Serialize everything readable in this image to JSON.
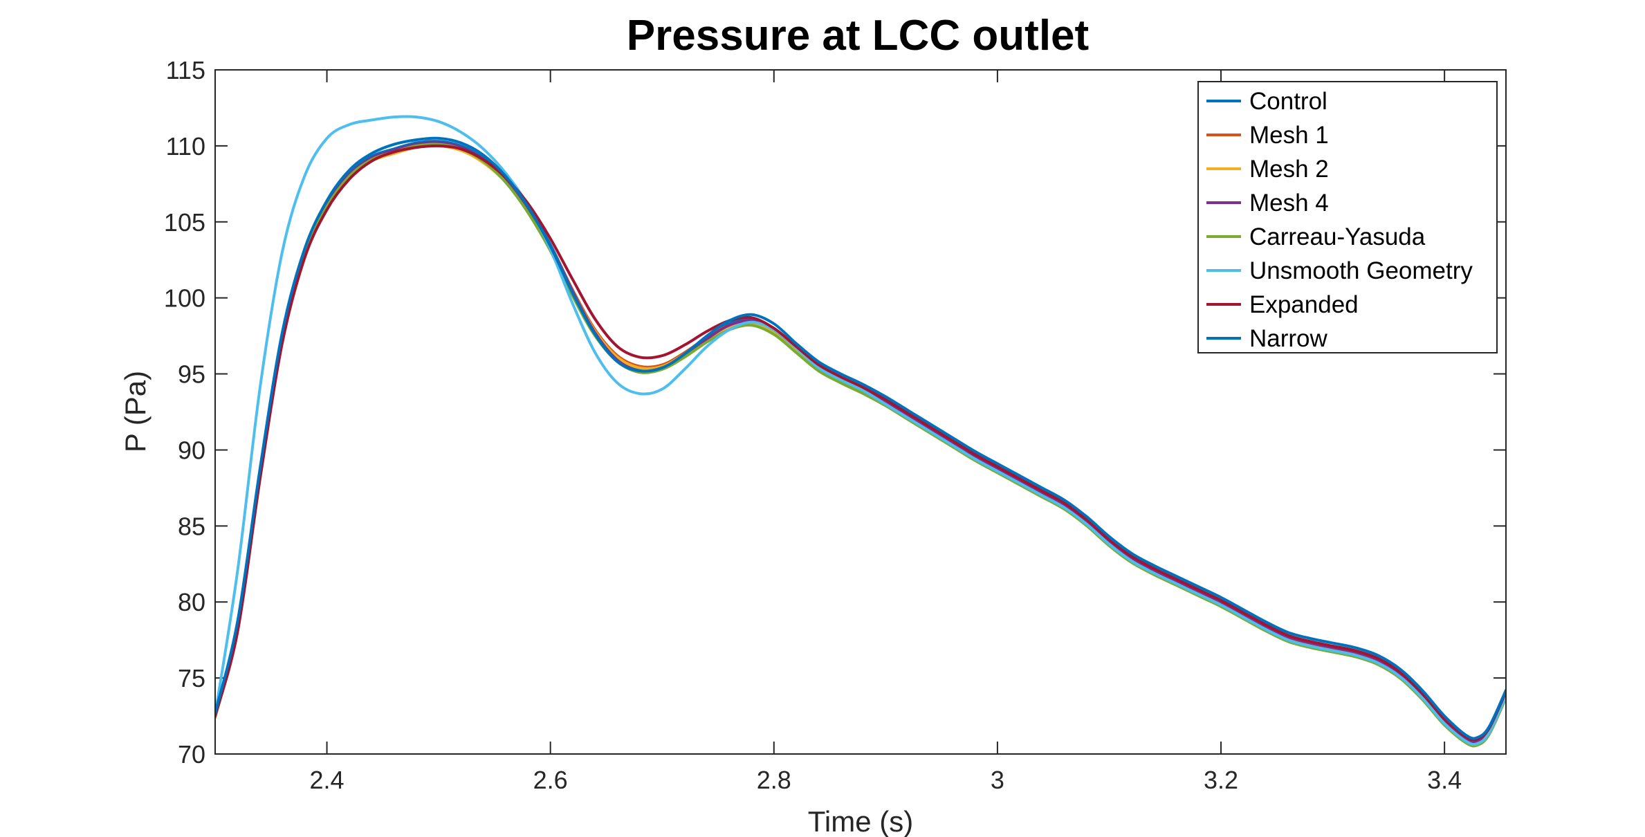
{
  "chart_data": {
    "type": "line",
    "title": "Pressure at LCC outlet",
    "xlabel": "Time (s)",
    "ylabel": "P (Pa)",
    "xlim": [
      2.3,
      3.455
    ],
    "ylim": [
      70,
      115
    ],
    "xticks": [
      2.4,
      2.6,
      2.8,
      3,
      3.2,
      3.4
    ],
    "xtick_labels": [
      "2.4",
      "2.6",
      "2.8",
      "3",
      "3.2",
      "3.4"
    ],
    "yticks": [
      70,
      75,
      80,
      85,
      90,
      95,
      100,
      105,
      110,
      115
    ],
    "ytick_labels": [
      "70",
      "75",
      "80",
      "85",
      "90",
      "95",
      "100",
      "105",
      "110",
      "115"
    ],
    "grid": false,
    "box": true,
    "legend_position": "top-right",
    "series": [
      {
        "name": "Control",
        "color": "#0072BD",
        "x": [
          2.3,
          2.32,
          2.34,
          2.36,
          2.38,
          2.4,
          2.42,
          2.44,
          2.46,
          2.48,
          2.5,
          2.52,
          2.54,
          2.56,
          2.58,
          2.6,
          2.62,
          2.64,
          2.66,
          2.68,
          2.7,
          2.72,
          2.74,
          2.76,
          2.78,
          2.8,
          2.82,
          2.84,
          2.86,
          2.88,
          2.9,
          2.92,
          2.94,
          2.96,
          2.98,
          3.0,
          3.02,
          3.04,
          3.06,
          3.08,
          3.1,
          3.12,
          3.14,
          3.16,
          3.18,
          3.2,
          3.22,
          3.24,
          3.26,
          3.28,
          3.3,
          3.32,
          3.34,
          3.36,
          3.38,
          3.4,
          3.42,
          3.43,
          3.44,
          3.455
        ],
        "y": [
          72.6,
          78.5,
          88.5,
          97.5,
          103.0,
          106.2,
          108.2,
          109.3,
          109.8,
          110.2,
          110.3,
          110.0,
          109.2,
          107.9,
          106.0,
          103.5,
          100.5,
          97.8,
          96.0,
          95.3,
          95.5,
          96.3,
          97.4,
          98.3,
          98.6,
          98.0,
          96.8,
          95.6,
          94.8,
          94.1,
          93.3,
          92.4,
          91.5,
          90.6,
          89.7,
          88.9,
          88.1,
          87.3,
          86.5,
          85.4,
          84.1,
          83.0,
          82.2,
          81.5,
          80.8,
          80.1,
          79.3,
          78.5,
          77.8,
          77.4,
          77.1,
          76.8,
          76.3,
          75.4,
          74.0,
          72.3,
          71.0,
          70.9,
          71.6,
          74.0
        ]
      },
      {
        "name": "Mesh 1",
        "color": "#D95319",
        "x": [
          2.3,
          2.32,
          2.34,
          2.36,
          2.38,
          2.4,
          2.42,
          2.44,
          2.46,
          2.48,
          2.5,
          2.52,
          2.54,
          2.56,
          2.58,
          2.6,
          2.62,
          2.64,
          2.66,
          2.68,
          2.7,
          2.72,
          2.74,
          2.76,
          2.78,
          2.8,
          2.82,
          2.84,
          2.86,
          2.88,
          2.9,
          2.92,
          2.94,
          2.96,
          2.98,
          3.0,
          3.02,
          3.04,
          3.06,
          3.08,
          3.1,
          3.12,
          3.14,
          3.16,
          3.18,
          3.2,
          3.22,
          3.24,
          3.26,
          3.28,
          3.3,
          3.32,
          3.34,
          3.36,
          3.38,
          3.4,
          3.42,
          3.43,
          3.44,
          3.455
        ],
        "y": [
          72.5,
          78.3,
          88.3,
          97.3,
          102.8,
          106.0,
          108.0,
          109.1,
          109.6,
          110.0,
          110.1,
          109.8,
          109.0,
          107.7,
          105.8,
          103.4,
          100.5,
          97.9,
          96.2,
          95.5,
          95.6,
          96.4,
          97.4,
          98.2,
          98.4,
          97.8,
          96.6,
          95.4,
          94.6,
          93.9,
          93.1,
          92.2,
          91.3,
          90.4,
          89.5,
          88.7,
          87.9,
          87.1,
          86.3,
          85.2,
          83.9,
          82.8,
          82.0,
          81.3,
          80.6,
          79.9,
          79.1,
          78.3,
          77.6,
          77.2,
          76.9,
          76.6,
          76.1,
          75.2,
          73.8,
          72.1,
          70.8,
          70.7,
          71.4,
          73.8
        ]
      },
      {
        "name": "Mesh 2",
        "color": "#EDB120",
        "x": [
          2.3,
          2.32,
          2.34,
          2.36,
          2.38,
          2.4,
          2.42,
          2.44,
          2.46,
          2.48,
          2.5,
          2.52,
          2.54,
          2.56,
          2.58,
          2.6,
          2.62,
          2.64,
          2.66,
          2.68,
          2.7,
          2.72,
          2.74,
          2.76,
          2.78,
          2.8,
          2.82,
          2.84,
          2.86,
          2.88,
          2.9,
          2.92,
          2.94,
          2.96,
          2.98,
          3.0,
          3.02,
          3.04,
          3.06,
          3.08,
          3.1,
          3.12,
          3.14,
          3.16,
          3.18,
          3.2,
          3.22,
          3.24,
          3.26,
          3.28,
          3.3,
          3.32,
          3.34,
          3.36,
          3.38,
          3.4,
          3.42,
          3.43,
          3.44,
          3.455
        ],
        "y": [
          72.5,
          78.3,
          88.2,
          97.2,
          102.7,
          105.9,
          107.9,
          109.0,
          109.5,
          109.9,
          110.0,
          109.7,
          108.9,
          107.6,
          105.7,
          103.3,
          100.4,
          97.8,
          96.1,
          95.4,
          95.5,
          96.3,
          97.3,
          98.1,
          98.3,
          97.7,
          96.5,
          95.3,
          94.5,
          93.8,
          93.0,
          92.1,
          91.2,
          90.3,
          89.4,
          88.6,
          87.8,
          87.0,
          86.2,
          85.1,
          83.8,
          82.7,
          81.9,
          81.2,
          80.5,
          79.8,
          79.0,
          78.2,
          77.5,
          77.1,
          76.8,
          76.5,
          76.0,
          75.1,
          73.7,
          72.0,
          70.7,
          70.6,
          71.3,
          73.7
        ]
      },
      {
        "name": "Mesh 4",
        "color": "#7E2F8E",
        "x": [
          2.3,
          2.32,
          2.34,
          2.36,
          2.38,
          2.4,
          2.42,
          2.44,
          2.46,
          2.48,
          2.5,
          2.52,
          2.54,
          2.56,
          2.58,
          2.6,
          2.62,
          2.64,
          2.66,
          2.68,
          2.7,
          2.72,
          2.74,
          2.76,
          2.78,
          2.8,
          2.82,
          2.84,
          2.86,
          2.88,
          2.9,
          2.92,
          2.94,
          2.96,
          2.98,
          3.0,
          3.02,
          3.04,
          3.06,
          3.08,
          3.1,
          3.12,
          3.14,
          3.16,
          3.18,
          3.2,
          3.22,
          3.24,
          3.26,
          3.28,
          3.3,
          3.32,
          3.34,
          3.36,
          3.38,
          3.4,
          3.42,
          3.43,
          3.44,
          3.455
        ],
        "y": [
          72.5,
          78.4,
          88.4,
          97.4,
          102.9,
          106.1,
          108.1,
          109.2,
          109.7,
          110.1,
          110.2,
          109.9,
          109.1,
          107.8,
          105.9,
          103.4,
          100.4,
          97.7,
          95.9,
          95.2,
          95.4,
          96.2,
          97.3,
          98.2,
          98.5,
          97.9,
          96.7,
          95.5,
          94.7,
          94.0,
          93.2,
          92.3,
          91.4,
          90.5,
          89.6,
          88.8,
          88.0,
          87.2,
          86.4,
          85.3,
          84.0,
          82.9,
          82.1,
          81.4,
          80.7,
          80.0,
          79.2,
          78.4,
          77.7,
          77.3,
          77.0,
          76.7,
          76.2,
          75.3,
          73.9,
          72.2,
          70.9,
          70.8,
          71.5,
          73.9
        ]
      },
      {
        "name": "Carreau-Yasuda",
        "color": "#77AC30",
        "x": [
          2.3,
          2.32,
          2.34,
          2.36,
          2.38,
          2.4,
          2.42,
          2.44,
          2.46,
          2.48,
          2.5,
          2.52,
          2.54,
          2.56,
          2.58,
          2.6,
          2.62,
          2.64,
          2.66,
          2.68,
          2.7,
          2.72,
          2.74,
          2.76,
          2.78,
          2.8,
          2.82,
          2.84,
          2.86,
          2.88,
          2.9,
          2.92,
          2.94,
          2.96,
          2.98,
          3.0,
          3.02,
          3.04,
          3.06,
          3.08,
          3.1,
          3.12,
          3.14,
          3.16,
          3.18,
          3.2,
          3.22,
          3.24,
          3.26,
          3.28,
          3.3,
          3.32,
          3.34,
          3.36,
          3.38,
          3.4,
          3.42,
          3.43,
          3.44,
          3.455
        ],
        "y": [
          72.4,
          78.2,
          88.2,
          97.2,
          102.8,
          106.0,
          108.0,
          109.1,
          109.6,
          110.0,
          110.1,
          109.8,
          109.0,
          107.6,
          105.6,
          103.1,
          100.1,
          97.5,
          95.8,
          95.1,
          95.3,
          96.1,
          97.1,
          97.9,
          98.2,
          97.6,
          96.4,
          95.2,
          94.4,
          93.7,
          92.9,
          92.0,
          91.1,
          90.2,
          89.3,
          88.5,
          87.7,
          86.9,
          86.1,
          85.0,
          83.7,
          82.6,
          81.8,
          81.1,
          80.4,
          79.7,
          78.9,
          78.1,
          77.4,
          77.0,
          76.7,
          76.4,
          75.9,
          75.0,
          73.6,
          71.9,
          70.7,
          70.6,
          71.3,
          73.7
        ]
      },
      {
        "name": "Unsmooth Geometry",
        "color": "#4DBEEE",
        "x": [
          2.3,
          2.32,
          2.34,
          2.36,
          2.38,
          2.4,
          2.42,
          2.44,
          2.46,
          2.48,
          2.5,
          2.52,
          2.54,
          2.56,
          2.58,
          2.6,
          2.62,
          2.64,
          2.66,
          2.68,
          2.7,
          2.72,
          2.74,
          2.76,
          2.78,
          2.8,
          2.82,
          2.84,
          2.86,
          2.88,
          2.9,
          2.92,
          2.94,
          2.96,
          2.98,
          3.0,
          3.02,
          3.04,
          3.06,
          3.08,
          3.1,
          3.12,
          3.14,
          3.16,
          3.18,
          3.2,
          3.22,
          3.24,
          3.26,
          3.28,
          3.3,
          3.32,
          3.34,
          3.36,
          3.38,
          3.4,
          3.42,
          3.43,
          3.44,
          3.455
        ],
        "y": [
          72.6,
          82.0,
          94.0,
          103.0,
          108.0,
          110.5,
          111.4,
          111.7,
          111.9,
          111.9,
          111.6,
          110.9,
          109.8,
          108.2,
          106.1,
          103.2,
          99.6,
          96.4,
          94.4,
          93.7,
          94.0,
          95.3,
          96.8,
          97.9,
          98.4,
          97.9,
          96.7,
          95.4,
          94.6,
          93.9,
          93.0,
          92.1,
          91.2,
          90.3,
          89.4,
          88.6,
          87.8,
          87.0,
          86.2,
          85.1,
          83.8,
          82.7,
          81.9,
          81.2,
          80.5,
          79.8,
          79.0,
          78.2,
          77.5,
          77.1,
          76.8,
          76.5,
          76.0,
          75.1,
          73.7,
          72.0,
          70.8,
          70.7,
          71.4,
          73.8
        ]
      },
      {
        "name": "Expanded",
        "color": "#A2142F",
        "x": [
          2.3,
          2.32,
          2.34,
          2.36,
          2.38,
          2.4,
          2.42,
          2.44,
          2.46,
          2.48,
          2.5,
          2.52,
          2.54,
          2.56,
          2.58,
          2.6,
          2.62,
          2.64,
          2.66,
          2.68,
          2.7,
          2.72,
          2.74,
          2.76,
          2.78,
          2.8,
          2.82,
          2.84,
          2.86,
          2.88,
          2.9,
          2.92,
          2.94,
          2.96,
          2.98,
          3.0,
          3.02,
          3.04,
          3.06,
          3.08,
          3.1,
          3.12,
          3.14,
          3.16,
          3.18,
          3.2,
          3.22,
          3.24,
          3.26,
          3.28,
          3.3,
          3.32,
          3.34,
          3.36,
          3.38,
          3.4,
          3.42,
          3.43,
          3.44,
          3.455
        ],
        "y": [
          72.5,
          78.0,
          88.0,
          97.0,
          102.6,
          105.8,
          107.8,
          109.0,
          109.6,
          109.9,
          110.0,
          109.8,
          109.1,
          107.9,
          106.2,
          103.9,
          101.2,
          98.6,
          96.8,
          96.1,
          96.2,
          96.9,
          97.8,
          98.5,
          98.7,
          98.0,
          96.8,
          95.6,
          94.8,
          94.1,
          93.3,
          92.4,
          91.5,
          90.6,
          89.7,
          88.9,
          88.1,
          87.3,
          86.5,
          85.4,
          84.1,
          83.0,
          82.2,
          81.5,
          80.8,
          80.1,
          79.3,
          78.5,
          77.8,
          77.4,
          77.1,
          76.8,
          76.3,
          75.4,
          74.0,
          72.3,
          71.1,
          71.0,
          71.7,
          74.1
        ]
      },
      {
        "name": "Narrow",
        "color": "#0072BD",
        "x": [
          2.3,
          2.32,
          2.34,
          2.36,
          2.38,
          2.4,
          2.42,
          2.44,
          2.46,
          2.48,
          2.5,
          2.52,
          2.54,
          2.56,
          2.58,
          2.6,
          2.62,
          2.64,
          2.66,
          2.68,
          2.7,
          2.72,
          2.74,
          2.76,
          2.78,
          2.8,
          2.82,
          2.84,
          2.86,
          2.88,
          2.9,
          2.92,
          2.94,
          2.96,
          2.98,
          3.0,
          3.02,
          3.04,
          3.06,
          3.08,
          3.1,
          3.12,
          3.14,
          3.16,
          3.18,
          3.2,
          3.22,
          3.24,
          3.26,
          3.28,
          3.3,
          3.32,
          3.34,
          3.36,
          3.38,
          3.4,
          3.42,
          3.43,
          3.44,
          3.455
        ],
        "y": [
          72.7,
          78.7,
          88.7,
          97.7,
          103.2,
          106.4,
          108.4,
          109.5,
          110.1,
          110.4,
          110.5,
          110.2,
          109.4,
          108.0,
          106.0,
          103.4,
          100.3,
          97.6,
          95.8,
          95.2,
          95.4,
          96.3,
          97.5,
          98.5,
          98.9,
          98.3,
          97.0,
          95.8,
          95.0,
          94.3,
          93.5,
          92.6,
          91.7,
          90.8,
          89.9,
          89.1,
          88.3,
          87.5,
          86.7,
          85.6,
          84.3,
          83.2,
          82.4,
          81.7,
          81.0,
          80.3,
          79.5,
          78.7,
          78.0,
          77.6,
          77.3,
          77.0,
          76.5,
          75.6,
          74.2,
          72.5,
          71.2,
          71.1,
          71.8,
          74.2
        ]
      }
    ]
  }
}
